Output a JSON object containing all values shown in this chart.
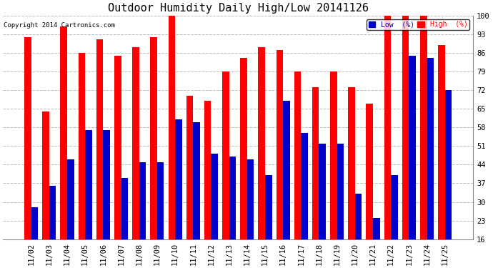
{
  "title": "Outdoor Humidity Daily High/Low 20141126",
  "copyright": "Copyright 2014 Cartronics.com",
  "dates": [
    "11/02",
    "11/03",
    "11/04",
    "11/05",
    "11/06",
    "11/07",
    "11/08",
    "11/09",
    "11/10",
    "11/11",
    "11/12",
    "11/13",
    "11/14",
    "11/15",
    "11/16",
    "11/17",
    "11/18",
    "11/19",
    "11/20",
    "11/21",
    "11/22",
    "11/23",
    "11/24",
    "11/25"
  ],
  "high": [
    92,
    64,
    96,
    86,
    91,
    85,
    88,
    92,
    100,
    70,
    68,
    79,
    84,
    88,
    87,
    79,
    73,
    79,
    73,
    67,
    100,
    100,
    100,
    89
  ],
  "low": [
    28,
    36,
    46,
    57,
    57,
    39,
    45,
    45,
    61,
    60,
    48,
    47,
    46,
    40,
    68,
    56,
    52,
    52,
    33,
    24,
    40,
    85,
    84,
    72
  ],
  "ylim_min": 16,
  "ylim_max": 100,
  "yticks": [
    16,
    23,
    30,
    37,
    44,
    51,
    58,
    65,
    72,
    79,
    86,
    93,
    100
  ],
  "bar_width": 0.38,
  "high_color": "#ff0000",
  "low_color": "#0000cc",
  "bg_color": "#ffffff",
  "plot_bg_color": "#ffffff",
  "grid_color": "#bbbbbb",
  "title_fontsize": 11,
  "tick_fontsize": 7.5,
  "legend_high_label": "High  (%)",
  "legend_low_label": "Low  (%)"
}
